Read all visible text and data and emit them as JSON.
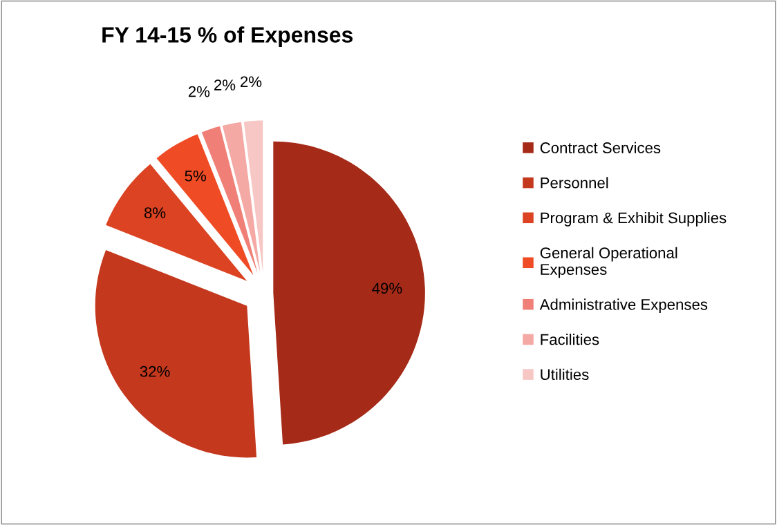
{
  "chart_data": {
    "type": "pie",
    "title": "FY 14-15 % of Expenses",
    "categories": [
      "Contract Services",
      "Personnel",
      "Program & Exhibit Supplies",
      "General Operational Expenses",
      "Administrative Expenses",
      "Facilities",
      "Utilities"
    ],
    "values": [
      49,
      32,
      8,
      5,
      2,
      2,
      2
    ],
    "colors": [
      "#a52a17",
      "#c4381e",
      "#dc4322",
      "#ef4b25",
      "#f08077",
      "#f4a9a5",
      "#f7c7c5"
    ],
    "value_labels": [
      "49%",
      "32%",
      "8%",
      "5%",
      "2%",
      "2%",
      "2%"
    ],
    "legend": "right"
  }
}
